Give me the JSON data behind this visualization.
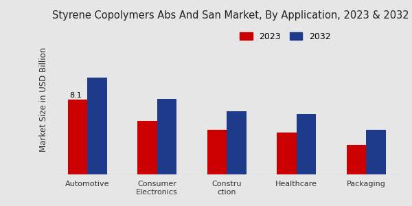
{
  "title": "Styrene Copolymers Abs And San Market, By Application, 2023 & 2032",
  "ylabel": "Market Size in USD Billion",
  "categories": [
    "Automotive",
    "Consumer\nElectronics",
    "Constru\nction",
    "Healthcare",
    "Packaging"
  ],
  "values_2023": [
    8.1,
    5.8,
    4.8,
    4.5,
    3.2
  ],
  "values_2032": [
    10.5,
    8.2,
    6.8,
    6.5,
    4.8
  ],
  "color_2023": "#cc0000",
  "color_2032": "#1e3a8a",
  "annotation_value": "8.1",
  "annotation_bar_index": 0,
  "background_color": "#e6e6e6",
  "legend_labels": [
    "2023",
    "2032"
  ],
  "bar_width": 0.28,
  "title_fontsize": 10.5,
  "axis_label_fontsize": 8.5,
  "tick_fontsize": 8,
  "legend_fontsize": 9
}
